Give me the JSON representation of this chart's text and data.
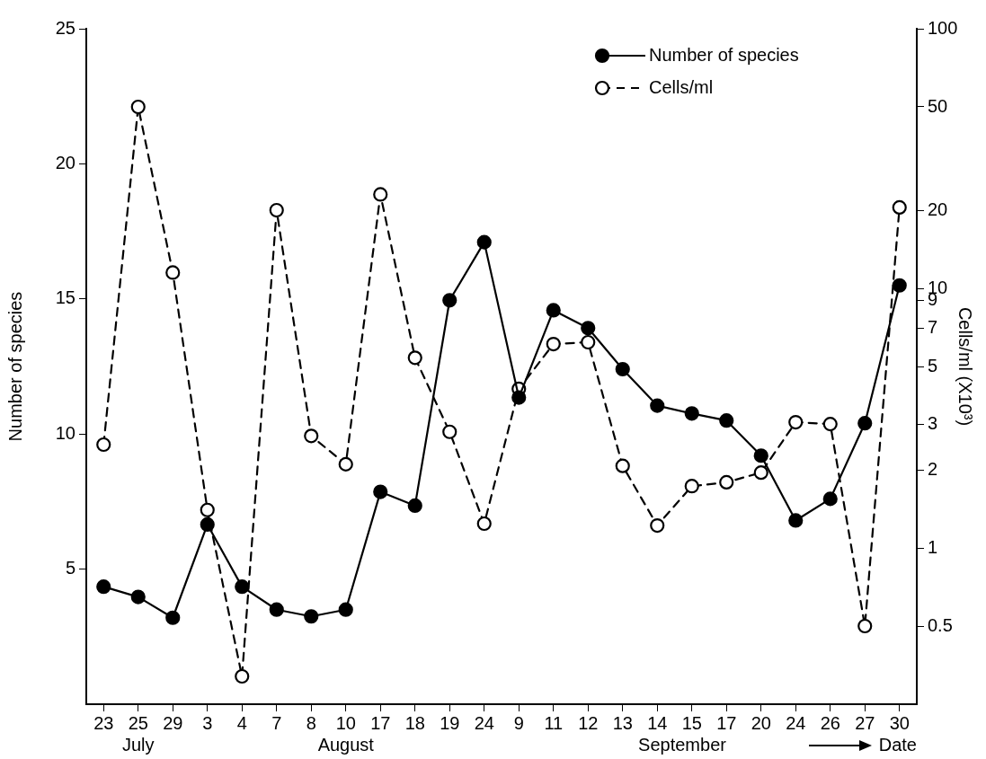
{
  "chart_data": {
    "type": "line",
    "categories": [
      "23",
      "25",
      "29",
      "3",
      "4",
      "7",
      "8",
      "10",
      "17",
      "18",
      "19",
      "24",
      "9",
      "11",
      "12",
      "13",
      "14",
      "15",
      "17",
      "20",
      "24",
      "26",
      "27",
      "30"
    ],
    "series": [
      {
        "name": "Number of species",
        "color": "#000000",
        "line_style": "solid",
        "values": [
          4.35,
          3.97,
          3.2,
          6.65,
          4.35,
          3.5,
          3.25,
          3.5,
          7.86,
          7.35,
          14.95,
          17.1,
          11.35,
          14.58,
          13.92,
          12.4,
          11.05,
          10.76,
          10.5,
          9.2,
          6.8,
          7.6,
          10.4,
          15.5
        ]
      },
      {
        "name": "Cells/ml",
        "color": "#000000",
        "line_style": "dashed",
        "axis": "y2",
        "values": [
          2.5,
          50,
          11.5,
          1.4,
          0.32,
          20,
          2.7,
          2.1,
          23,
          5.4,
          2.8,
          1.24,
          4.1,
          6.1,
          6.2,
          2.07,
          1.22,
          1.73,
          1.79,
          1.95,
          3.05,
          3,
          0.5,
          20.5
        ]
      }
    ],
    "xlabel": "Date",
    "ylabel": "Number of species",
    "y2label": "Cells/ml (X10³)",
    "ylim": [
      0,
      25
    ],
    "yticks": [
      5,
      10,
      15,
      20,
      25
    ],
    "log": "y2",
    "y2lim": [
      0.25,
      100
    ],
    "y2ticks": [
      0.5,
      1,
      2,
      3,
      5,
      7,
      9,
      10,
      20,
      50,
      100
    ],
    "annotations": [
      "July",
      "August",
      "September"
    ],
    "marker": "circle",
    "grid": false,
    "legend": "top right"
  }
}
